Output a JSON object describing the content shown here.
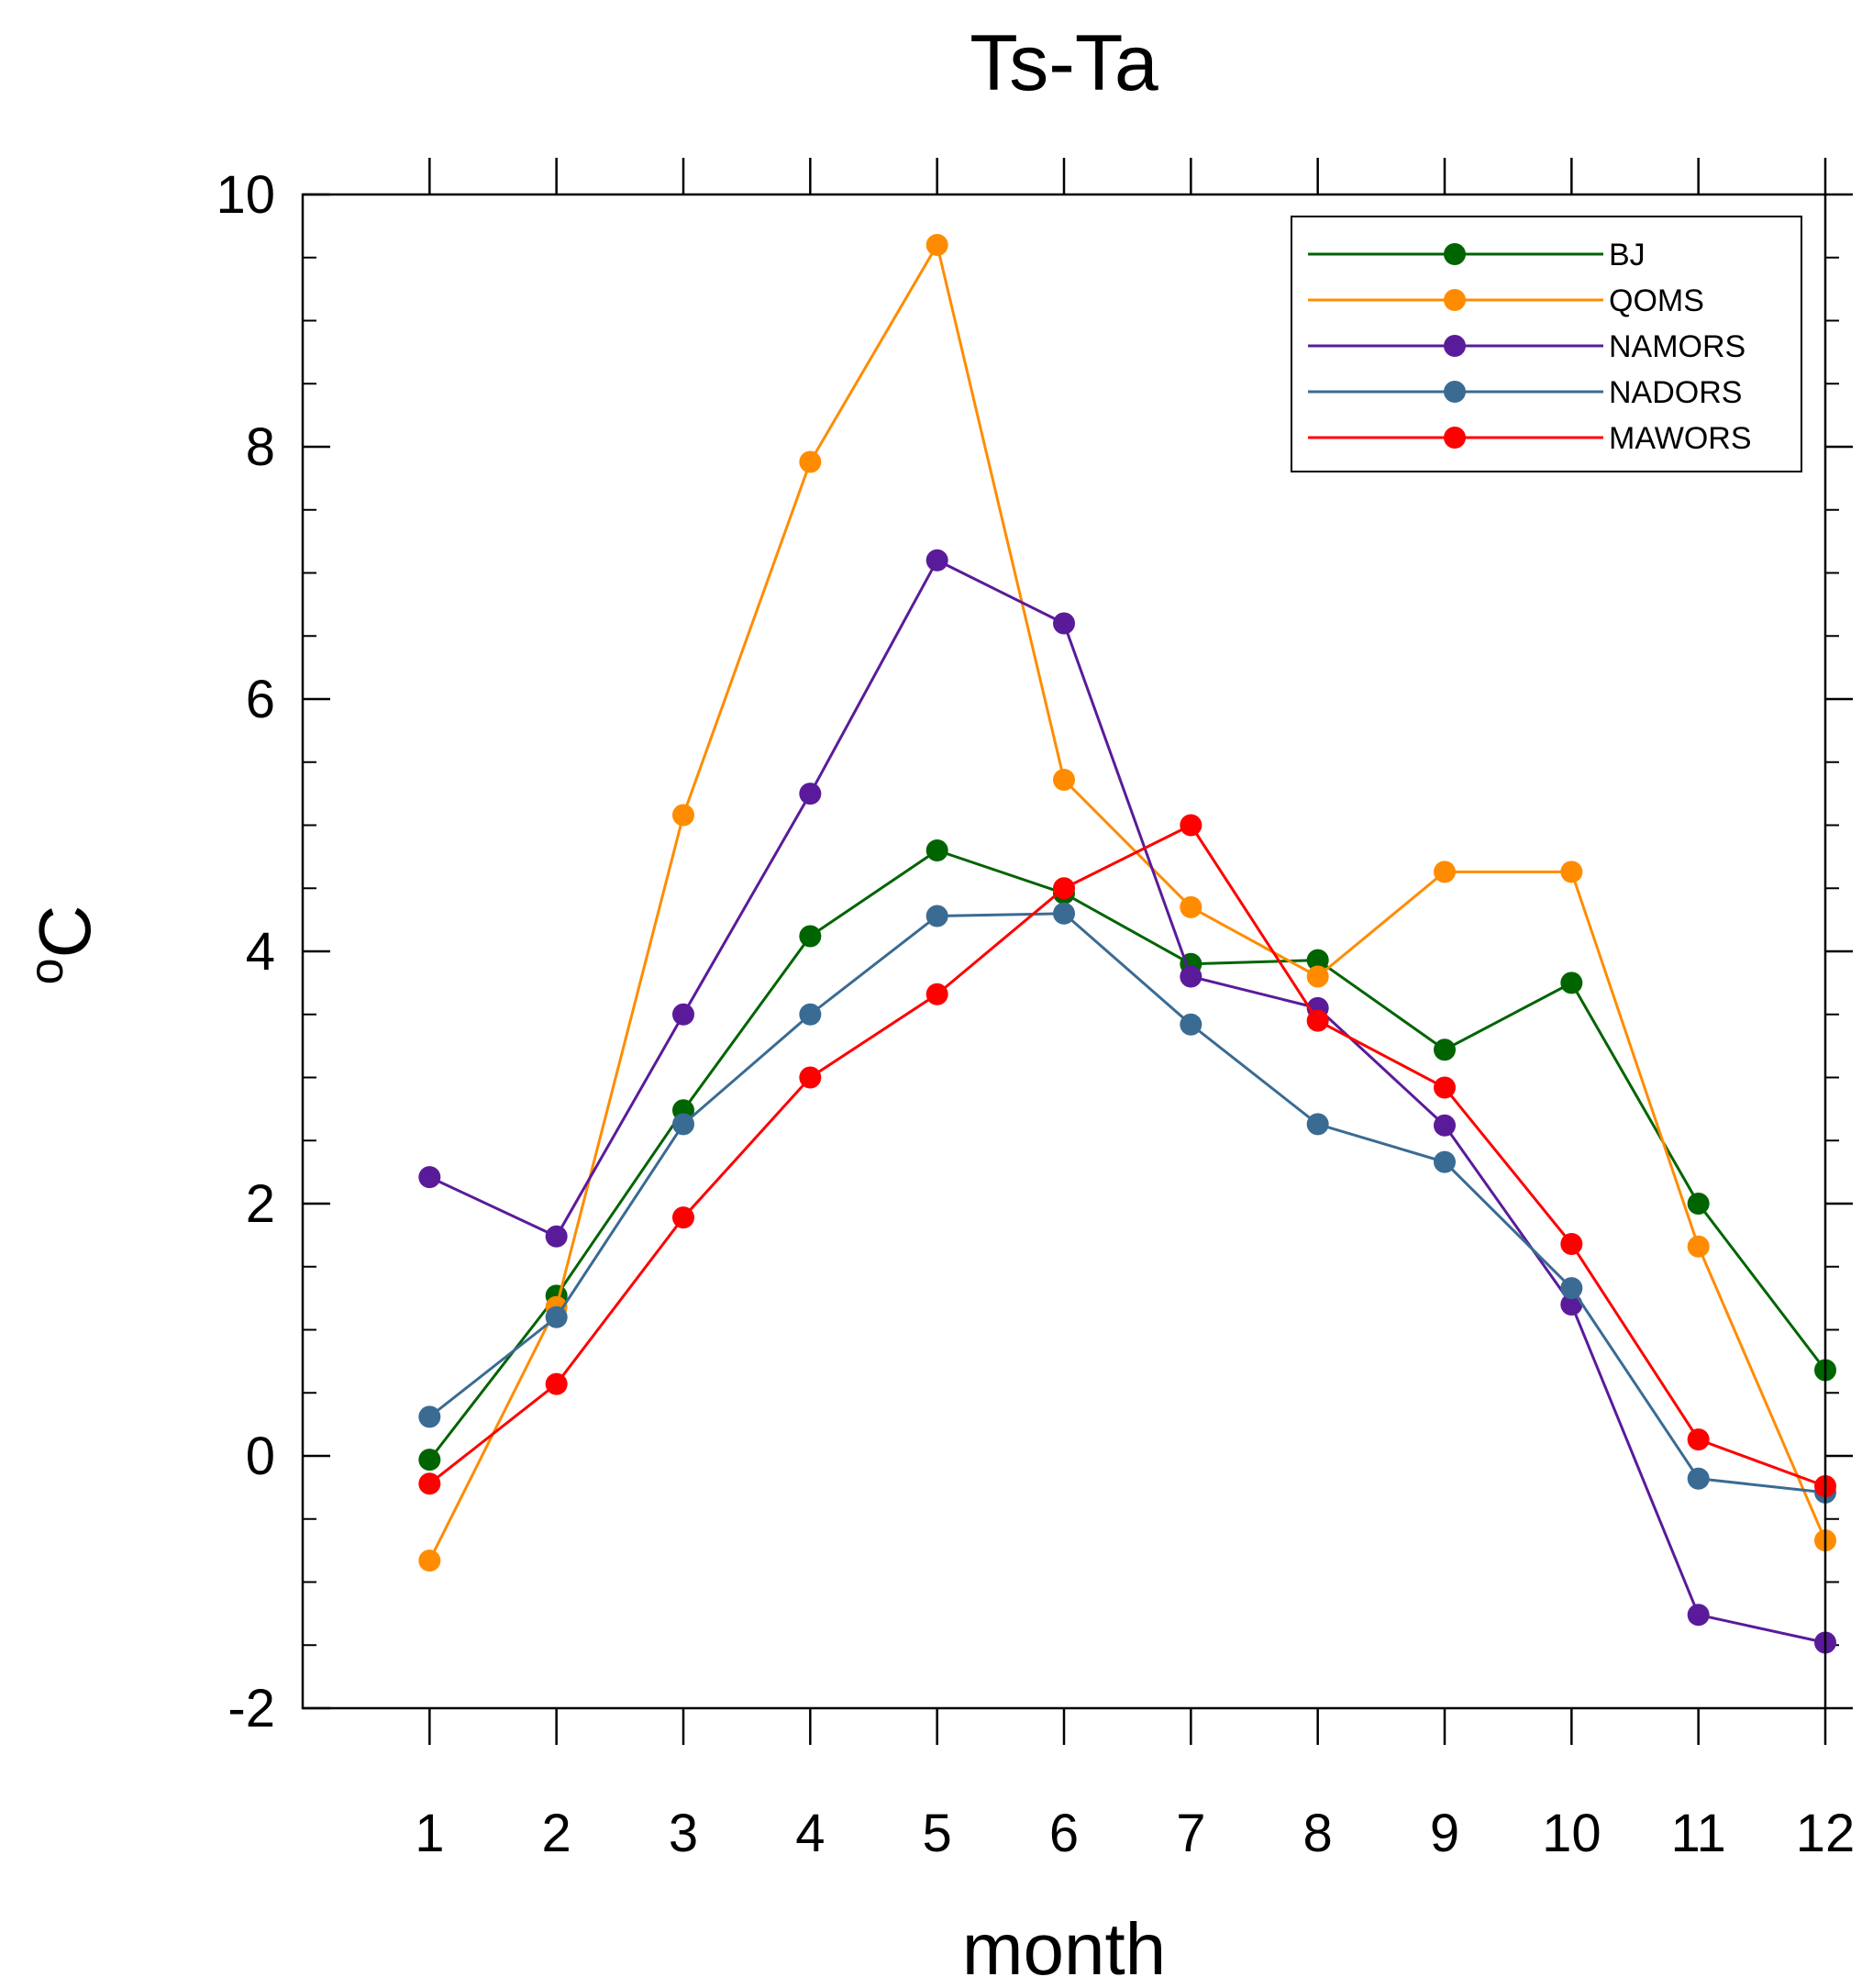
{
  "chart_data": {
    "type": "line",
    "title": "Ts-Ta",
    "xlabel": "month",
    "ylabel": "°C",
    "ylabel_parts": {
      "superscript": "o",
      "unit": "C"
    },
    "x": [
      1,
      2,
      3,
      4,
      5,
      6,
      7,
      8,
      9,
      10,
      11,
      12
    ],
    "x_tick_labels": [
      "1",
      "2",
      "3",
      "4",
      "5",
      "6",
      "7",
      "8",
      "9",
      "10",
      "11",
      "12"
    ],
    "xlim": [
      0,
      12
    ],
    "ylim": [
      -2,
      10
    ],
    "y_ticks": [
      -2,
      0,
      2,
      4,
      6,
      8,
      10
    ],
    "y_tick_labels": [
      "-2",
      "0",
      "2",
      "4",
      "6",
      "8",
      "10"
    ],
    "y_minor_step": 0.5,
    "grid": false,
    "legend_position": "top-right",
    "series": [
      {
        "name": "BJ",
        "color": "#006400",
        "values": [
          -0.03,
          1.27,
          2.74,
          4.12,
          4.8,
          4.46,
          3.9,
          3.93,
          3.22,
          3.75,
          2.0,
          0.68
        ]
      },
      {
        "name": "QOMS",
        "color": "#ff8c00",
        "values": [
          -0.83,
          1.18,
          5.08,
          7.88,
          9.6,
          5.36,
          4.35,
          3.8,
          4.63,
          4.63,
          1.66,
          -0.67
        ]
      },
      {
        "name": "NAMORS",
        "color": "#5a1b9a",
        "values": [
          2.21,
          1.74,
          3.5,
          5.25,
          7.1,
          6.6,
          3.8,
          3.55,
          2.62,
          1.2,
          -1.26,
          -1.48
        ]
      },
      {
        "name": "NADORS",
        "color": "#3a6b93",
        "values": [
          0.31,
          1.1,
          2.63,
          3.5,
          4.28,
          4.3,
          3.42,
          2.63,
          2.33,
          1.33,
          -0.18,
          -0.29
        ]
      },
      {
        "name": "MAWORS",
        "color": "#ff0000",
        "values": [
          -0.22,
          0.57,
          1.89,
          3.0,
          3.66,
          4.5,
          5.0,
          3.45,
          2.92,
          1.68,
          0.13,
          -0.24
        ]
      }
    ]
  }
}
